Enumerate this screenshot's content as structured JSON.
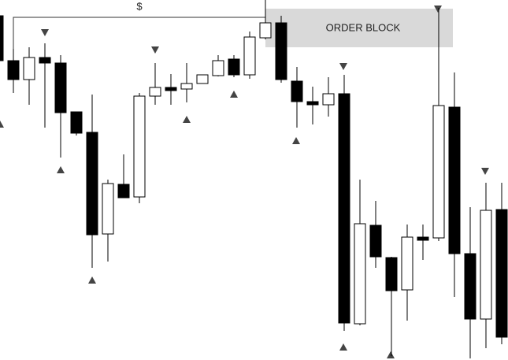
{
  "chart_data": {
    "type": "candlestick",
    "annotations": {
      "bracket": "$",
      "zone": "ORDER BLOCK"
    },
    "ylim": [
      0,
      457
    ],
    "up_color": "#ffffff",
    "down_color": "#000000",
    "zone_color": "#d9d9d9",
    "open": [
      437,
      380,
      356,
      384,
      377,
      315,
      289,
      160,
      223,
      207,
      335,
      346,
      344,
      351,
      361,
      382,
      362,
      409,
      428,
      354,
      328,
      324,
      338,
      46,
      171,
      130,
      89,
      156,
      155,
      321,
      135,
      52,
      191
    ],
    "high": [
      437,
      395,
      397,
      402,
      387,
      315,
      337,
      229,
      261,
      339,
      377,
      363,
      377,
      362,
      387,
      387,
      417,
      457,
      437,
      372,
      347,
      359,
      362,
      229,
      202,
      131,
      172,
      172,
      447,
      365,
      194,
      225,
      225
    ],
    "low": [
      380,
      339,
      324,
      295,
      257,
      285,
      117,
      125,
      206,
      199,
      324,
      324,
      327,
      351,
      360,
      359,
      357,
      407,
      352,
      295,
      299,
      309,
      37,
      44,
      117,
      5,
      50,
      127,
      151,
      80,
      2,
      15,
      20
    ],
    "close": [
      380,
      356,
      384,
      377,
      314,
      288,
      159,
      224,
      206,
      335,
      346,
      342,
      351,
      362,
      380,
      362,
      410,
      428,
      356,
      328,
      324,
      338,
      47,
      173,
      131,
      88,
      156,
      152,
      323,
      135,
      52,
      190,
      29
    ]
  }
}
